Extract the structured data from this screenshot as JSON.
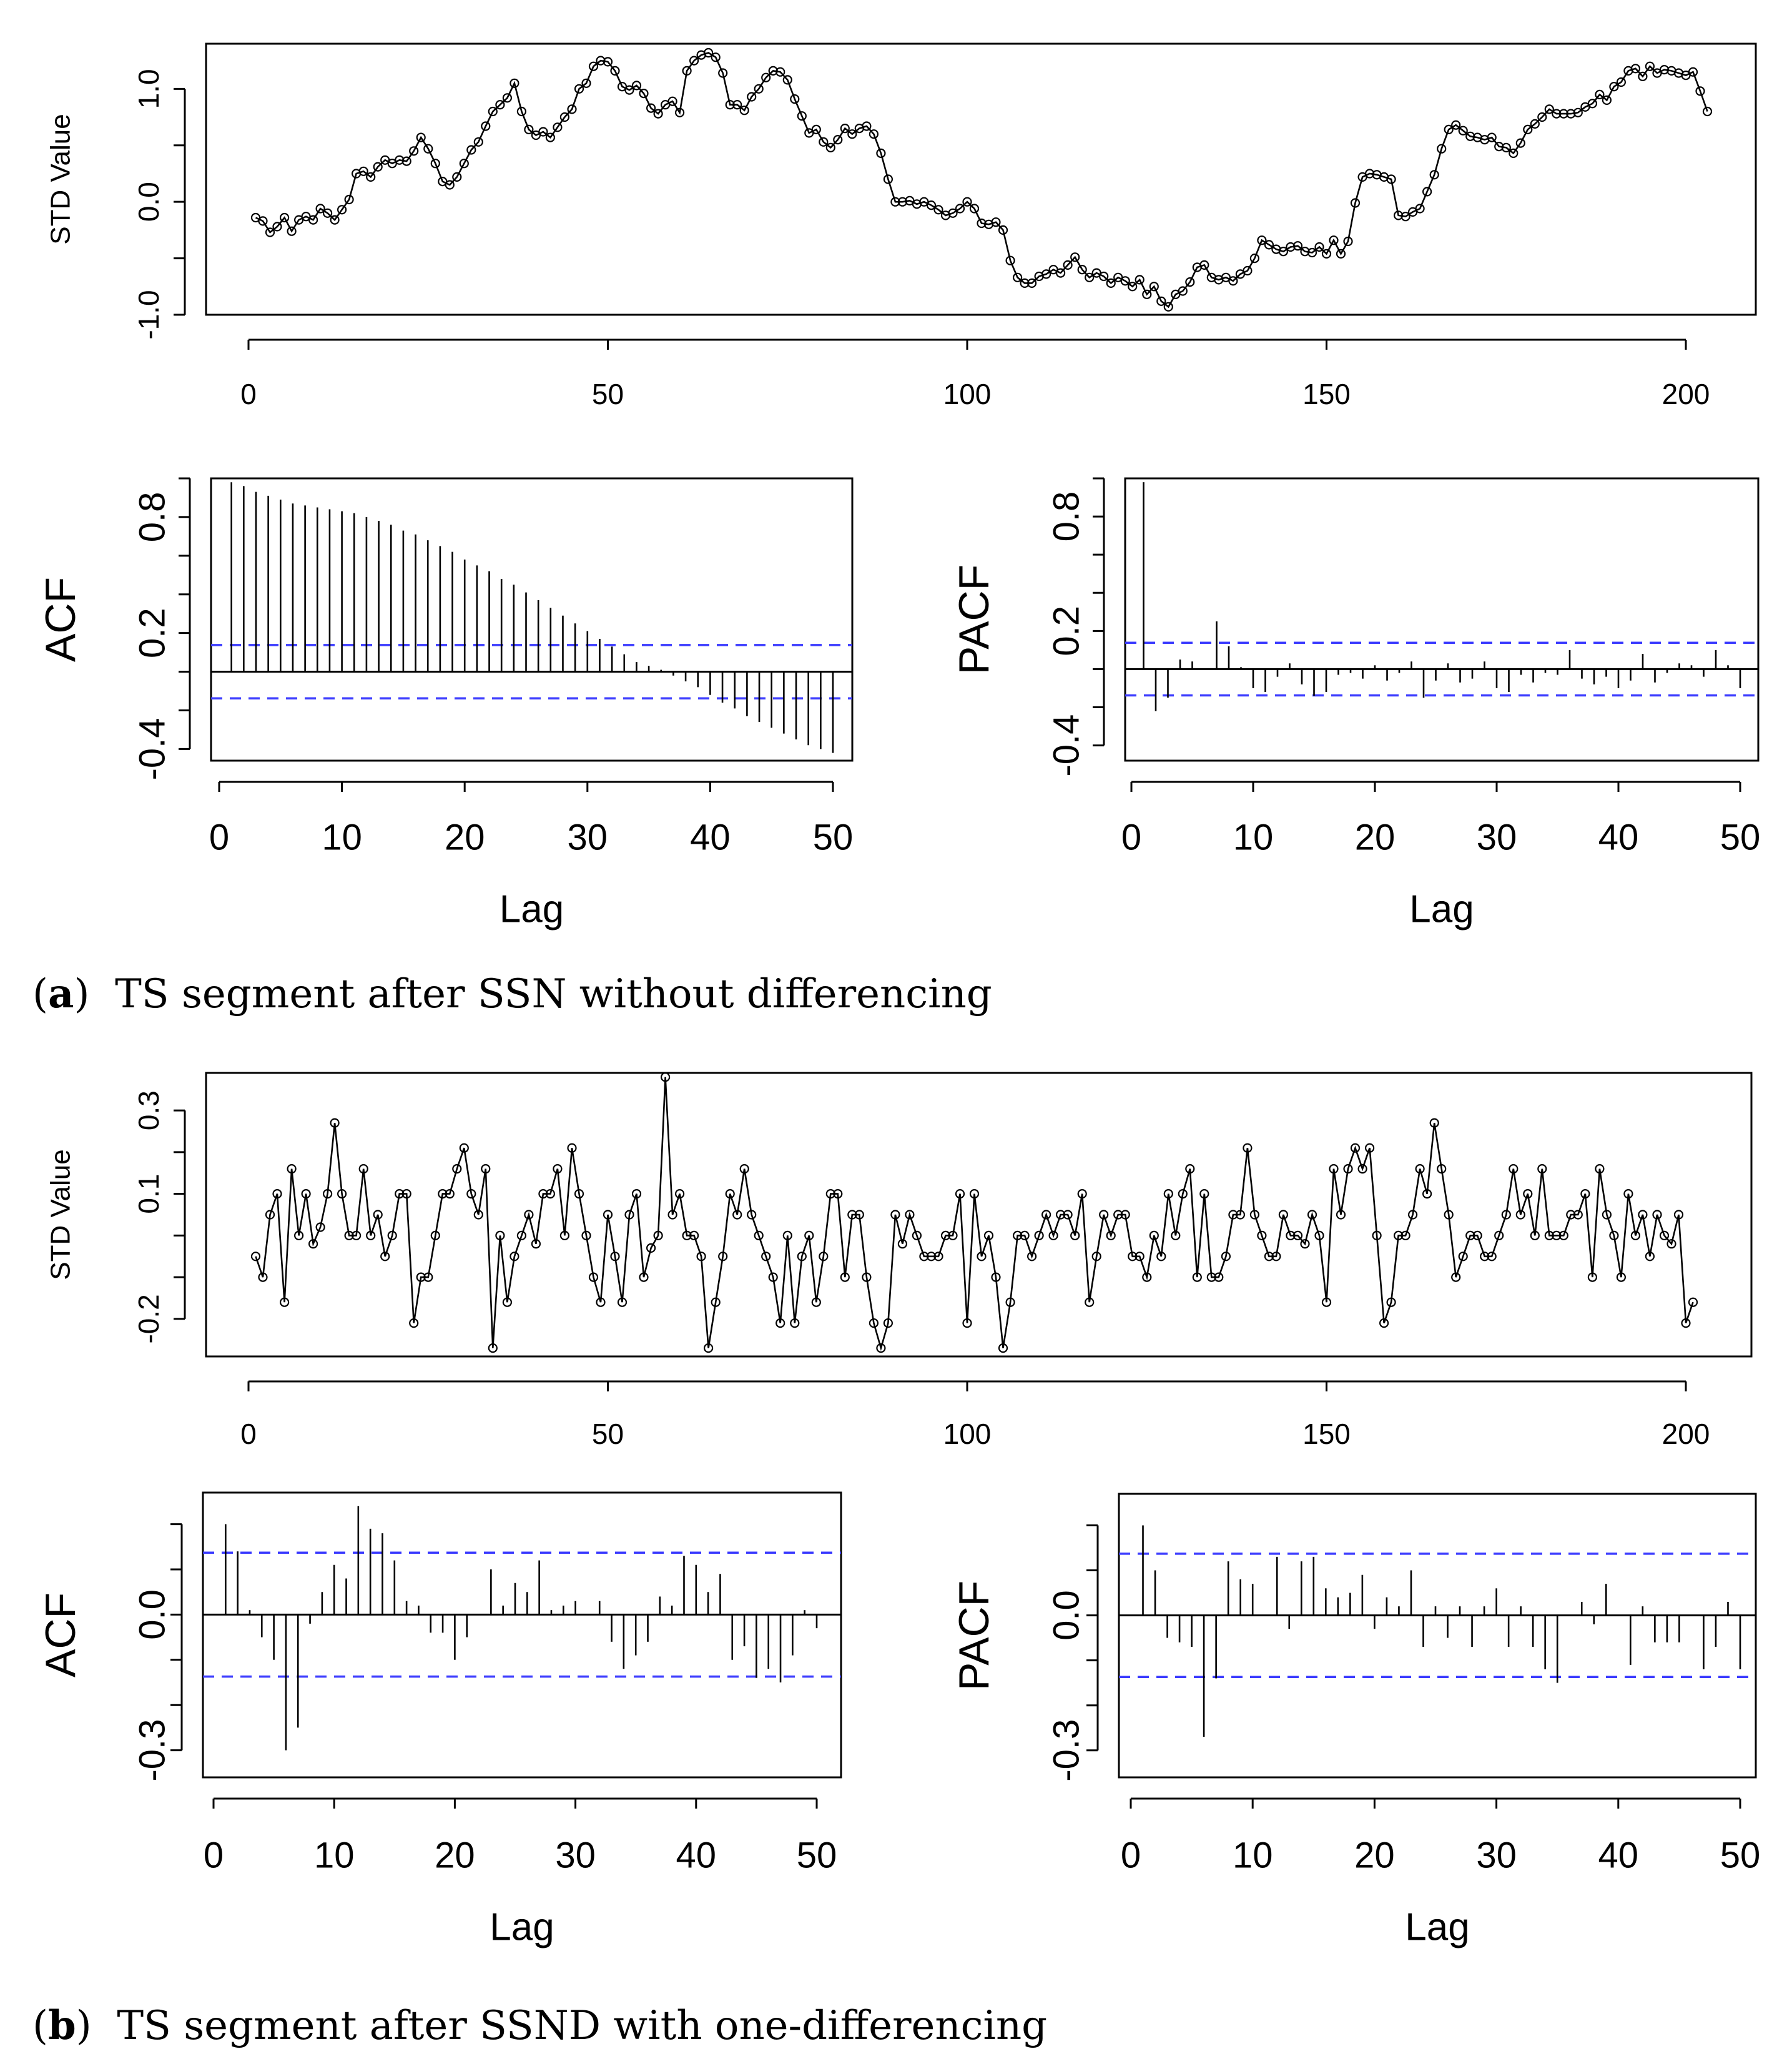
{
  "figure": {
    "caption_a": {
      "letter": "a",
      "text": "TS segment after SSN without differencing"
    },
    "caption_b": {
      "letter": "b",
      "text": "TS segment after SSND with one-differencing"
    }
  },
  "chart_data": [
    {
      "id": "a-series",
      "type": "line",
      "title": "",
      "xlabel": "",
      "ylabel": "STD Value",
      "xlim": [
        0,
        210
      ],
      "ylim": [
        -1.0,
        1.4
      ],
      "xticks": [
        0,
        50,
        100,
        150,
        200
      ],
      "yticks": [
        -1.0,
        -0.5,
        0.0,
        0.5,
        1.0
      ],
      "ytick_labels": [
        "-1.0",
        "",
        "0.0",
        "",
        "1.0"
      ],
      "markers": "open-circle",
      "x_start": 1,
      "values": [
        -0.14,
        -0.17,
        -0.27,
        -0.22,
        -0.14,
        -0.26,
        -0.16,
        -0.13,
        -0.16,
        -0.06,
        -0.1,
        -0.16,
        -0.07,
        0.02,
        0.25,
        0.27,
        0.22,
        0.31,
        0.37,
        0.34,
        0.37,
        0.36,
        0.45,
        0.57,
        0.47,
        0.34,
        0.18,
        0.15,
        0.22,
        0.34,
        0.46,
        0.53,
        0.67,
        0.8,
        0.86,
        0.92,
        1.05,
        0.8,
        0.64,
        0.59,
        0.62,
        0.57,
        0.66,
        0.75,
        0.82,
        1.0,
        1.05,
        1.2,
        1.25,
        1.24,
        1.16,
        1.02,
        0.99,
        1.03,
        0.96,
        0.83,
        0.78,
        0.86,
        0.89,
        0.79,
        1.16,
        1.25,
        1.3,
        1.32,
        1.28,
        1.14,
        0.86,
        0.86,
        0.81,
        0.93,
        1.0,
        1.1,
        1.16,
        1.15,
        1.08,
        0.91,
        0.76,
        0.61,
        0.64,
        0.53,
        0.48,
        0.55,
        0.65,
        0.6,
        0.65,
        0.67,
        0.6,
        0.43,
        0.2,
        0.0,
        0.0,
        0.01,
        -0.02,
        0.0,
        -0.03,
        -0.07,
        -0.12,
        -0.1,
        -0.06,
        0.0,
        -0.06,
        -0.19,
        -0.2,
        -0.18,
        -0.25,
        -0.52,
        -0.67,
        -0.72,
        -0.72,
        -0.66,
        -0.64,
        -0.6,
        -0.63,
        -0.56,
        -0.49,
        -0.6,
        -0.67,
        -0.63,
        -0.66,
        -0.72,
        -0.67,
        -0.7,
        -0.75,
        -0.69,
        -0.82,
        -0.75,
        -0.88,
        -0.93,
        -0.82,
        -0.79,
        -0.71,
        -0.58,
        -0.56,
        -0.67,
        -0.69,
        -0.67,
        -0.7,
        -0.64,
        -0.61,
        -0.5,
        -0.34,
        -0.38,
        -0.42,
        -0.44,
        -0.4,
        -0.39,
        -0.44,
        -0.45,
        -0.4,
        -0.46,
        -0.34,
        -0.46,
        -0.35,
        -0.01,
        0.22,
        0.25,
        0.24,
        0.22,
        0.2,
        -0.12,
        -0.13,
        -0.09,
        -0.06,
        0.09,
        0.24,
        0.47,
        0.64,
        0.68,
        0.63,
        0.58,
        0.57,
        0.55,
        0.57,
        0.49,
        0.48,
        0.43,
        0.52,
        0.64,
        0.69,
        0.75,
        0.82,
        0.78,
        0.78,
        0.78,
        0.79,
        0.84,
        0.87,
        0.95,
        0.9,
        1.02,
        1.06,
        1.16,
        1.18,
        1.11,
        1.2,
        1.14,
        1.17,
        1.16,
        1.14,
        1.12,
        1.15,
        0.98,
        0.8
      ]
    },
    {
      "id": "a-acf",
      "type": "bar",
      "style": "lollipop",
      "title": "",
      "xlabel": "Lag",
      "ylabel": "ACF",
      "xlim": [
        -1,
        52
      ],
      "ylim": [
        -0.46,
        1.0
      ],
      "xticks": [
        0,
        10,
        20,
        30,
        40,
        50
      ],
      "yticks": [
        -0.4,
        0.2,
        0.8
      ],
      "yticks_minor": [
        -0.4,
        -0.2,
        0.0,
        0.2,
        0.4,
        0.6,
        0.8,
        1.0
      ],
      "ci": [
        0.138,
        -0.138
      ],
      "lags": [
        1,
        2,
        3,
        4,
        5,
        6,
        7,
        8,
        9,
        10,
        11,
        12,
        13,
        14,
        15,
        16,
        17,
        18,
        19,
        20,
        21,
        22,
        23,
        24,
        25,
        26,
        27,
        28,
        29,
        30,
        31,
        32,
        33,
        34,
        35,
        36,
        37,
        38,
        39,
        40,
        41,
        42,
        43,
        44,
        45,
        46,
        47,
        48,
        49,
        50
      ],
      "values": [
        0.98,
        0.96,
        0.93,
        0.91,
        0.89,
        0.87,
        0.86,
        0.85,
        0.84,
        0.83,
        0.82,
        0.8,
        0.78,
        0.76,
        0.73,
        0.71,
        0.68,
        0.65,
        0.62,
        0.58,
        0.55,
        0.52,
        0.48,
        0.45,
        0.41,
        0.37,
        0.33,
        0.29,
        0.25,
        0.21,
        0.17,
        0.13,
        0.09,
        0.05,
        0.03,
        0.01,
        -0.02,
        -0.05,
        -0.08,
        -0.12,
        -0.16,
        -0.19,
        -0.23,
        -0.26,
        -0.29,
        -0.32,
        -0.35,
        -0.38,
        -0.4,
        -0.42
      ]
    },
    {
      "id": "a-pacf",
      "type": "bar",
      "style": "lollipop",
      "title": "",
      "xlabel": "Lag",
      "ylabel": "PACF",
      "xlim": [
        -1,
        52
      ],
      "ylim": [
        -0.48,
        1.0
      ],
      "xticks": [
        0,
        10,
        20,
        30,
        40,
        50
      ],
      "yticks": [
        -0.4,
        0.2,
        0.8
      ],
      "yticks_minor": [
        -0.4,
        -0.2,
        0.0,
        0.2,
        0.4,
        0.6,
        0.8,
        1.0
      ],
      "ci": [
        0.138,
        -0.138
      ],
      "lags": [
        1,
        2,
        3,
        4,
        5,
        6,
        7,
        8,
        9,
        10,
        11,
        12,
        13,
        14,
        15,
        16,
        17,
        18,
        19,
        20,
        21,
        22,
        23,
        24,
        25,
        26,
        27,
        28,
        29,
        30,
        31,
        32,
        33,
        34,
        35,
        36,
        37,
        38,
        39,
        40,
        41,
        42,
        43,
        44,
        45,
        46,
        47,
        48,
        49,
        50
      ],
      "values": [
        0.98,
        -0.22,
        -0.15,
        0.05,
        0.04,
        0.0,
        0.25,
        0.12,
        0.01,
        -0.1,
        -0.12,
        -0.04,
        0.03,
        -0.08,
        -0.14,
        -0.12,
        -0.03,
        -0.02,
        -0.05,
        0.02,
        -0.06,
        -0.02,
        0.04,
        -0.15,
        -0.06,
        0.03,
        -0.07,
        -0.05,
        0.04,
        -0.1,
        -0.12,
        -0.03,
        -0.07,
        -0.02,
        -0.03,
        0.1,
        -0.05,
        -0.08,
        -0.04,
        -0.1,
        -0.06,
        0.08,
        -0.07,
        -0.02,
        0.03,
        0.02,
        -0.04,
        0.1,
        0.02,
        -0.1
      ]
    },
    {
      "id": "b-series",
      "type": "line",
      "title": "",
      "xlabel": "",
      "ylabel": "STD Value",
      "xlim": [
        0,
        210
      ],
      "ylim": [
        -0.29,
        0.39
      ],
      "xticks": [
        0,
        50,
        100,
        150,
        200
      ],
      "yticks": [
        -0.2,
        -0.1,
        0.0,
        0.1,
        0.2,
        0.3
      ],
      "ytick_labels": [
        "-0.2",
        "",
        "",
        "0.1",
        "",
        "0.3"
      ],
      "markers": "open-circle",
      "x_start": 1,
      "values": [
        -0.05,
        -0.1,
        0.05,
        0.1,
        -0.16,
        0.16,
        0.0,
        0.1,
        -0.02,
        0.02,
        0.1,
        0.27,
        0.1,
        0.0,
        0.0,
        0.16,
        0.0,
        0.05,
        -0.05,
        0.0,
        0.1,
        0.1,
        -0.21,
        -0.1,
        -0.1,
        0.0,
        0.1,
        0.1,
        0.16,
        0.21,
        0.1,
        0.05,
        0.16,
        -0.27,
        0.0,
        -0.16,
        -0.05,
        0.0,
        0.05,
        -0.02,
        0.1,
        0.1,
        0.16,
        0.0,
        0.21,
        0.1,
        0.0,
        -0.1,
        -0.16,
        0.05,
        -0.05,
        -0.16,
        0.05,
        0.1,
        -0.1,
        -0.03,
        0.0,
        0.38,
        0.05,
        0.1,
        0.0,
        0.0,
        -0.05,
        -0.27,
        -0.16,
        -0.05,
        0.1,
        0.05,
        0.16,
        0.05,
        0.0,
        -0.05,
        -0.1,
        -0.21,
        0.0,
        -0.21,
        -0.05,
        0.0,
        -0.16,
        -0.05,
        0.1,
        0.1,
        -0.1,
        0.05,
        0.05,
        -0.1,
        -0.21,
        -0.27,
        -0.21,
        0.05,
        -0.02,
        0.05,
        0.0,
        -0.05,
        -0.05,
        -0.05,
        0.0,
        0.0,
        0.1,
        -0.21,
        0.1,
        -0.05,
        0.0,
        -0.1,
        -0.27,
        -0.16,
        0.0,
        0.0,
        -0.05,
        0.0,
        0.05,
        0.0,
        0.05,
        0.05,
        0.0,
        0.1,
        -0.16,
        -0.05,
        0.05,
        0.0,
        0.05,
        0.05,
        -0.05,
        -0.05,
        -0.1,
        0.0,
        -0.05,
        0.1,
        0.0,
        0.1,
        0.16,
        -0.1,
        0.1,
        -0.1,
        -0.1,
        -0.05,
        0.05,
        0.05,
        0.21,
        0.05,
        0.0,
        -0.05,
        -0.05,
        0.05,
        0.0,
        0.0,
        -0.02,
        0.05,
        0.0,
        -0.16,
        0.16,
        0.05,
        0.16,
        0.21,
        0.16,
        0.21,
        0.0,
        -0.21,
        -0.16,
        0.0,
        0.0,
        0.05,
        0.16,
        0.1,
        0.27,
        0.16,
        0.05,
        -0.1,
        -0.05,
        0.0,
        0.0,
        -0.05,
        -0.05,
        0.0,
        0.05,
        0.16,
        0.05,
        0.1,
        0.0,
        0.16,
        0.0,
        0.0,
        0.0,
        0.05,
        0.05,
        0.1,
        -0.1,
        0.16,
        0.05,
        0.0,
        -0.1,
        0.1,
        0.0,
        0.05,
        -0.05,
        0.05,
        0.0,
        -0.02,
        0.05,
        -0.21,
        -0.16
      ]
    },
    {
      "id": "b-acf",
      "type": "bar",
      "style": "lollipop",
      "title": "",
      "xlabel": "Lag",
      "ylabel": "ACF",
      "xlim": [
        -1,
        52
      ],
      "ylim": [
        -0.36,
        0.27
      ],
      "xticks": [
        0,
        10,
        20,
        30,
        40,
        50
      ],
      "yticks": [
        -0.3,
        0.0
      ],
      "yticks_minor": [
        -0.3,
        -0.2,
        -0.1,
        0.0,
        0.1,
        0.2
      ],
      "ci": [
        0.137,
        -0.137
      ],
      "lags": [
        1,
        2,
        3,
        4,
        5,
        6,
        7,
        8,
        9,
        10,
        11,
        12,
        13,
        14,
        15,
        16,
        17,
        18,
        19,
        20,
        21,
        22,
        23,
        24,
        25,
        26,
        27,
        28,
        29,
        30,
        31,
        32,
        33,
        34,
        35,
        36,
        37,
        38,
        39,
        40,
        41,
        42,
        43,
        44,
        45,
        46,
        47,
        48,
        49,
        50
      ],
      "values": [
        0.2,
        0.14,
        0.01,
        -0.05,
        -0.1,
        -0.3,
        -0.25,
        -0.02,
        0.05,
        0.11,
        0.08,
        0.24,
        0.19,
        0.18,
        0.12,
        0.03,
        0.02,
        -0.04,
        -0.04,
        -0.1,
        -0.05,
        0.0,
        0.1,
        0.02,
        0.07,
        0.05,
        0.12,
        0.01,
        0.02,
        0.03,
        0.0,
        0.03,
        -0.06,
        -0.12,
        -0.09,
        -0.06,
        0.04,
        0.02,
        0.13,
        0.11,
        0.05,
        0.09,
        -0.1,
        -0.07,
        -0.14,
        -0.12,
        -0.15,
        -0.09,
        0.01,
        -0.03
      ]
    },
    {
      "id": "b-pacf",
      "type": "bar",
      "style": "lollipop",
      "title": "",
      "xlabel": "Lag",
      "ylabel": "PACF",
      "xlim": [
        -1,
        52
      ],
      "ylim": [
        -0.36,
        0.27
      ],
      "xticks": [
        0,
        10,
        20,
        30,
        40,
        50
      ],
      "yticks": [
        -0.3,
        0.0
      ],
      "yticks_minor": [
        -0.3,
        -0.2,
        -0.1,
        0.0,
        0.1,
        0.2
      ],
      "ci": [
        0.137,
        -0.137
      ],
      "lags": [
        1,
        2,
        3,
        4,
        5,
        6,
        7,
        8,
        9,
        10,
        11,
        12,
        13,
        14,
        15,
        16,
        17,
        18,
        19,
        20,
        21,
        22,
        23,
        24,
        25,
        26,
        27,
        28,
        29,
        30,
        31,
        32,
        33,
        34,
        35,
        36,
        37,
        38,
        39,
        40,
        41,
        42,
        43,
        44,
        45,
        46,
        47,
        48,
        49,
        50
      ],
      "values": [
        0.2,
        0.1,
        -0.05,
        -0.06,
        -0.07,
        -0.27,
        -0.14,
        0.12,
        0.08,
        0.07,
        0.0,
        0.13,
        -0.03,
        0.12,
        0.13,
        0.06,
        0.04,
        0.05,
        0.09,
        -0.03,
        0.04,
        0.02,
        0.1,
        -0.07,
        0.02,
        -0.05,
        0.02,
        -0.07,
        0.02,
        0.06,
        -0.07,
        0.02,
        -0.07,
        -0.12,
        -0.15,
        0.0,
        0.03,
        -0.02,
        0.07,
        0.0,
        -0.11,
        0.02,
        -0.06,
        -0.06,
        -0.06,
        0.0,
        -0.12,
        -0.07,
        0.03,
        -0.12
      ]
    }
  ]
}
